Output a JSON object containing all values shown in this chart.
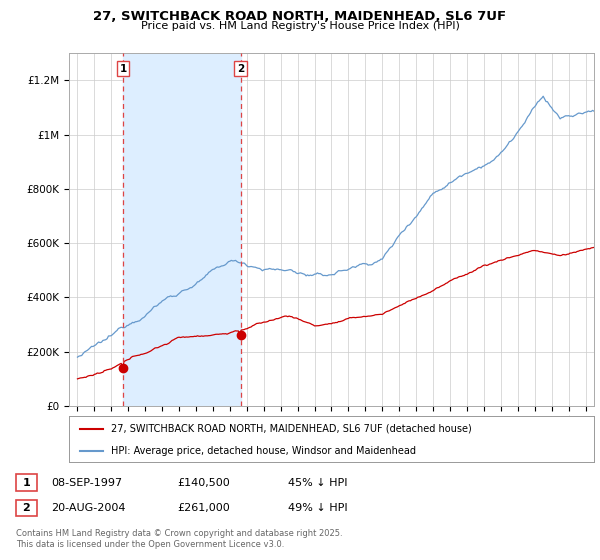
{
  "title": "27, SWITCHBACK ROAD NORTH, MAIDENHEAD, SL6 7UF",
  "subtitle": "Price paid vs. HM Land Registry's House Price Index (HPI)",
  "legend_line1": "27, SWITCHBACK ROAD NORTH, MAIDENHEAD, SL6 7UF (detached house)",
  "legend_line2": "HPI: Average price, detached house, Windsor and Maidenhead",
  "footer": "Contains HM Land Registry data © Crown copyright and database right 2025.\nThis data is licensed under the Open Government Licence v3.0.",
  "sale1_date": "08-SEP-1997",
  "sale1_price": "£140,500",
  "sale1_hpi": "45% ↓ HPI",
  "sale2_date": "20-AUG-2004",
  "sale2_price": "£261,000",
  "sale2_hpi": "49% ↓ HPI",
  "sale1_x": 1997.69,
  "sale1_y": 140500,
  "sale2_x": 2004.64,
  "sale2_y": 261000,
  "red_color": "#cc0000",
  "blue_color": "#6699cc",
  "shade_color": "#ddeeff",
  "vline_color": "#dd4444",
  "background_color": "#ffffff",
  "grid_color": "#cccccc",
  "ylim": [
    0,
    1300000
  ],
  "xlim": [
    1994.5,
    2025.5
  ]
}
